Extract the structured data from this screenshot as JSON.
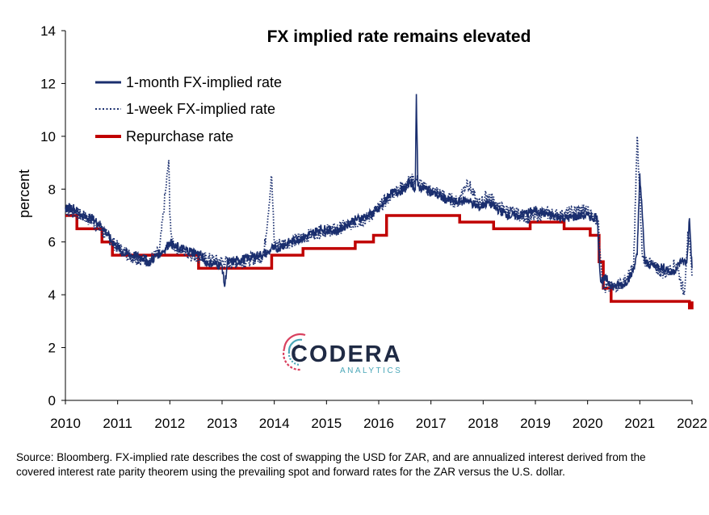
{
  "chart_data": {
    "type": "line",
    "title": "FX implied rate remains elevated",
    "ylabel": "percent",
    "xlabel": "",
    "xlim": [
      2010,
      2022
    ],
    "ylim": [
      0,
      14
    ],
    "x_ticks": [
      "2010",
      "2011",
      "2012",
      "2013",
      "2014",
      "2015",
      "2016",
      "2017",
      "2018",
      "2019",
      "2020",
      "2021",
      "2022"
    ],
    "y_ticks": [
      "0",
      "2",
      "4",
      "6",
      "8",
      "10",
      "12",
      "14"
    ],
    "grid": false,
    "legend_position": "top-left",
    "series": [
      {
        "name": "1-month FX-implied rate",
        "style": "solid",
        "color": "#1a2e6e",
        "x": [
          2010.0,
          2010.15,
          2010.3,
          2010.5,
          2010.7,
          2010.9,
          2011.1,
          2011.3,
          2011.5,
          2011.6,
          2011.75,
          2011.9,
          2012.0,
          2012.1,
          2012.3,
          2012.5,
          2012.6,
          2012.65,
          2012.72,
          2012.8,
          2013.0,
          2013.05,
          2013.1,
          2013.3,
          2013.5,
          2013.7,
          2013.9,
          2013.95,
          2014.0,
          2014.3,
          2014.6,
          2014.9,
          2015.2,
          2015.5,
          2015.8,
          2016.0,
          2016.2,
          2016.5,
          2016.6,
          2016.7,
          2016.72,
          2016.75,
          2016.9,
          2017.1,
          2017.3,
          2017.5,
          2017.7,
          2017.9,
          2018.1,
          2018.3,
          2018.5,
          2018.7,
          2019.0,
          2019.3,
          2019.6,
          2019.9,
          2020.0,
          2020.1,
          2020.18,
          2020.25,
          2020.35,
          2020.5,
          2020.7,
          2020.85,
          2020.95,
          2021.0,
          2021.1,
          2021.3,
          2021.5,
          2021.6,
          2021.7,
          2021.8,
          2021.9,
          2021.95,
          2022.0
        ],
        "values": [
          7.3,
          7.3,
          7.0,
          6.9,
          6.6,
          6.0,
          5.6,
          5.5,
          5.4,
          5.2,
          5.5,
          5.7,
          6.0,
          5.8,
          5.7,
          5.6,
          5.5,
          5.3,
          5.2,
          5.2,
          5.1,
          4.3,
          5.2,
          5.3,
          5.4,
          5.5,
          5.6,
          5.8,
          5.7,
          6.0,
          6.2,
          6.5,
          6.4,
          6.8,
          7.0,
          7.2,
          7.8,
          8.0,
          8.3,
          8.0,
          11.6,
          8.1,
          8.0,
          7.8,
          7.6,
          7.5,
          7.6,
          7.3,
          7.5,
          7.2,
          7.0,
          7.0,
          7.2,
          7.0,
          6.9,
          7.0,
          7.0,
          6.9,
          7.0,
          4.5,
          4.6,
          4.3,
          4.4,
          4.8,
          5.5,
          8.6,
          5.2,
          5.1,
          5.0,
          4.8,
          5.0,
          5.3,
          5.2,
          6.9,
          5.0
        ]
      },
      {
        "name": "1-week FX-implied rate",
        "style": "dotted",
        "color": "#1a2e6e",
        "x": [
          2010.0,
          2010.2,
          2010.5,
          2010.8,
          2011.0,
          2011.3,
          2011.6,
          2011.8,
          2011.98,
          2012.0,
          2012.05,
          2012.3,
          2012.6,
          2012.9,
          2013.2,
          2013.5,
          2013.8,
          2013.95,
          2014.0,
          2014.3,
          2014.6,
          2014.9,
          2015.2,
          2015.5,
          2015.8,
          2016.0,
          2016.3,
          2016.5,
          2016.7,
          2016.9,
          2017.1,
          2017.3,
          2017.5,
          2017.7,
          2017.9,
          2018.1,
          2018.3,
          2018.6,
          2018.9,
          2019.2,
          2019.5,
          2019.8,
          2020.0,
          2020.1,
          2020.2,
          2020.3,
          2020.5,
          2020.7,
          2020.88,
          2020.95,
          2021.05,
          2021.3,
          2021.5,
          2021.7,
          2021.85,
          2021.92,
          2022.0
        ],
        "values": [
          7.2,
          7.1,
          6.8,
          6.2,
          5.8,
          5.4,
          5.3,
          5.6,
          9.1,
          7.0,
          5.9,
          5.6,
          5.4,
          5.3,
          5.2,
          5.3,
          5.5,
          8.5,
          5.9,
          6.0,
          6.2,
          6.4,
          6.5,
          6.7,
          6.9,
          7.3,
          7.9,
          8.2,
          8.4,
          8.0,
          7.9,
          7.7,
          7.5,
          8.3,
          7.4,
          7.8,
          7.3,
          7.1,
          6.9,
          7.1,
          7.0,
          7.2,
          7.2,
          7.0,
          6.8,
          4.2,
          4.3,
          4.5,
          5.0,
          10.0,
          5.4,
          5.0,
          4.8,
          5.2,
          4.0,
          6.4,
          4.7
        ]
      },
      {
        "name": "Repurchase rate",
        "style": "step",
        "color": "#c00000",
        "x": [
          2010.0,
          2010.22,
          2010.7,
          2010.9,
          2012.55,
          2013.95,
          2014.55,
          2015.55,
          2015.9,
          2016.15,
          2017.55,
          2018.2,
          2018.9,
          2019.55,
          2020.05,
          2020.22,
          2020.3,
          2020.45,
          2021.95,
          2022.0
        ],
        "values": [
          7.0,
          6.5,
          6.0,
          5.5,
          5.0,
          5.5,
          5.75,
          6.0,
          6.25,
          7.0,
          6.75,
          6.5,
          6.75,
          6.5,
          6.25,
          5.25,
          4.25,
          3.75,
          3.5,
          3.75
        ]
      }
    ]
  },
  "logo": {
    "name": "CODERA",
    "tagline": "ANALYTICS",
    "colors": [
      "#d9415f",
      "#4aa7b8",
      "#1f2a44"
    ]
  },
  "source_note": "Source: Bloomberg. FX-implied rate describes the cost of swapping the USD for ZAR, and are annualized interest derived from the covered interest rate parity theorem using the prevailing spot and forward rates for the ZAR versus the U.S. dollar."
}
